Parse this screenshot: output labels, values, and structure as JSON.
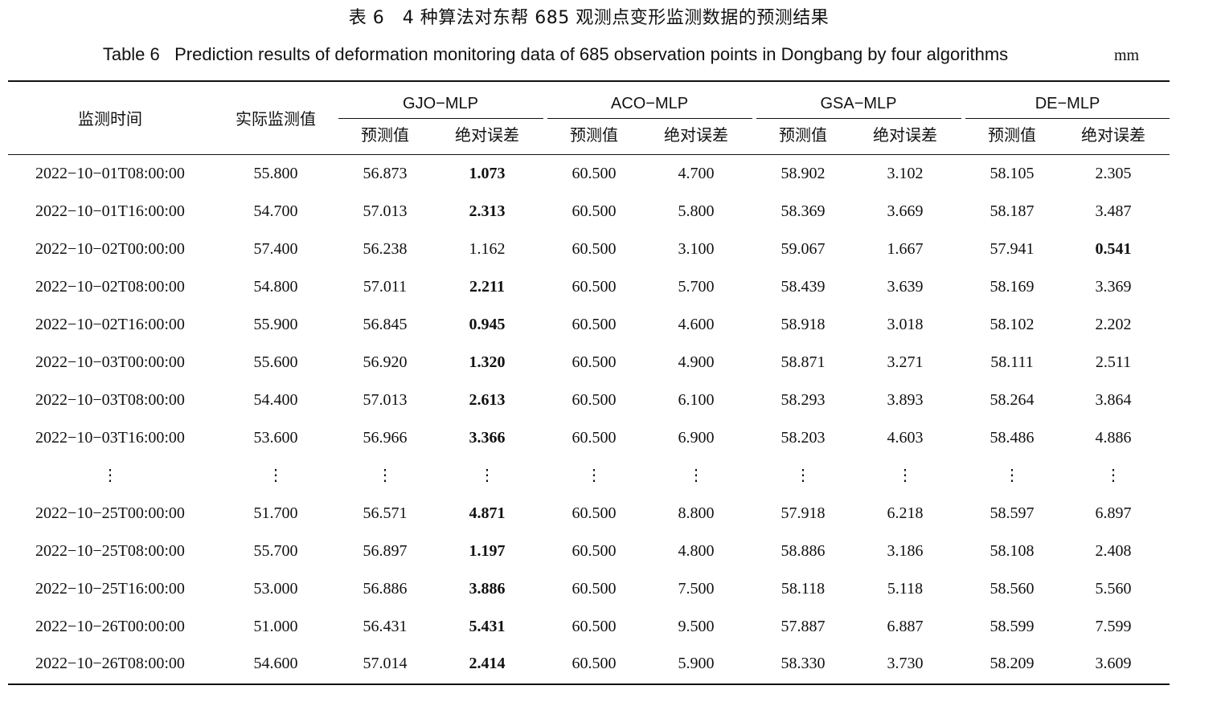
{
  "caption": {
    "cn": "表 6   4 种算法对东帮 685 观测点变形监测数据的预测结果",
    "en": "Table 6   Prediction results of deformation monitoring data of 685 observation points in Dongbang by four algorithms",
    "unit": "mm"
  },
  "header": {
    "time": "监测时间",
    "actual": "实际监测值",
    "groups": [
      "GJO−MLP",
      "ACO−MLP",
      "GSA−MLP",
      "DE−MLP"
    ],
    "pred": "预测值",
    "err": "绝对误差"
  },
  "table": {
    "rows": [
      {
        "time": "2022−10−01T08:00:00",
        "actual": "55.800",
        "cells": [
          "56.873",
          "1.073",
          "60.500",
          "4.700",
          "58.902",
          "3.102",
          "58.105",
          "2.305"
        ],
        "bold": [
          1
        ]
      },
      {
        "time": "2022−10−01T16:00:00",
        "actual": "54.700",
        "cells": [
          "57.013",
          "2.313",
          "60.500",
          "5.800",
          "58.369",
          "3.669",
          "58.187",
          "3.487"
        ],
        "bold": [
          1
        ]
      },
      {
        "time": "2022−10−02T00:00:00",
        "actual": "57.400",
        "cells": [
          "56.238",
          "1.162",
          "60.500",
          "3.100",
          "59.067",
          "1.667",
          "57.941",
          "0.541"
        ],
        "bold": [
          7
        ]
      },
      {
        "time": "2022−10−02T08:00:00",
        "actual": "54.800",
        "cells": [
          "57.011",
          "2.211",
          "60.500",
          "5.700",
          "58.439",
          "3.639",
          "58.169",
          "3.369"
        ],
        "bold": [
          1
        ]
      },
      {
        "time": "2022−10−02T16:00:00",
        "actual": "55.900",
        "cells": [
          "56.845",
          "0.945",
          "60.500",
          "4.600",
          "58.918",
          "3.018",
          "58.102",
          "2.202"
        ],
        "bold": [
          1
        ]
      },
      {
        "time": "2022−10−03T00:00:00",
        "actual": "55.600",
        "cells": [
          "56.920",
          "1.320",
          "60.500",
          "4.900",
          "58.871",
          "3.271",
          "58.111",
          "2.511"
        ],
        "bold": [
          1
        ]
      },
      {
        "time": "2022−10−03T08:00:00",
        "actual": "54.400",
        "cells": [
          "57.013",
          "2.613",
          "60.500",
          "6.100",
          "58.293",
          "3.893",
          "58.264",
          "3.864"
        ],
        "bold": [
          1
        ]
      },
      {
        "time": "2022−10−03T16:00:00",
        "actual": "53.600",
        "cells": [
          "56.966",
          "3.366",
          "60.500",
          "6.900",
          "58.203",
          "4.603",
          "58.486",
          "4.886"
        ],
        "bold": [
          1
        ]
      },
      {
        "time": "⋮",
        "actual": "⋮",
        "cells": [
          "⋮",
          "⋮",
          "⋮",
          "⋮",
          "⋮",
          "⋮",
          "⋮",
          "⋮"
        ],
        "bold": []
      },
      {
        "time": "2022−10−25T00:00:00",
        "actual": "51.700",
        "cells": [
          "56.571",
          "4.871",
          "60.500",
          "8.800",
          "57.918",
          "6.218",
          "58.597",
          "6.897"
        ],
        "bold": [
          1
        ]
      },
      {
        "time": "2022−10−25T08:00:00",
        "actual": "55.700",
        "cells": [
          "56.897",
          "1.197",
          "60.500",
          "4.800",
          "58.886",
          "3.186",
          "58.108",
          "2.408"
        ],
        "bold": [
          1
        ]
      },
      {
        "time": "2022−10−25T16:00:00",
        "actual": "53.000",
        "cells": [
          "56.886",
          "3.886",
          "60.500",
          "7.500",
          "58.118",
          "5.118",
          "58.560",
          "5.560"
        ],
        "bold": [
          1
        ]
      },
      {
        "time": "2022−10−26T00:00:00",
        "actual": "51.000",
        "cells": [
          "56.431",
          "5.431",
          "60.500",
          "9.500",
          "57.887",
          "6.887",
          "58.599",
          "7.599"
        ],
        "bold": [
          1
        ]
      },
      {
        "time": "2022−10−26T08:00:00",
        "actual": "54.600",
        "cells": [
          "57.014",
          "2.414",
          "60.500",
          "5.900",
          "58.330",
          "3.730",
          "58.209",
          "3.609"
        ],
        "bold": [
          1
        ]
      }
    ]
  }
}
